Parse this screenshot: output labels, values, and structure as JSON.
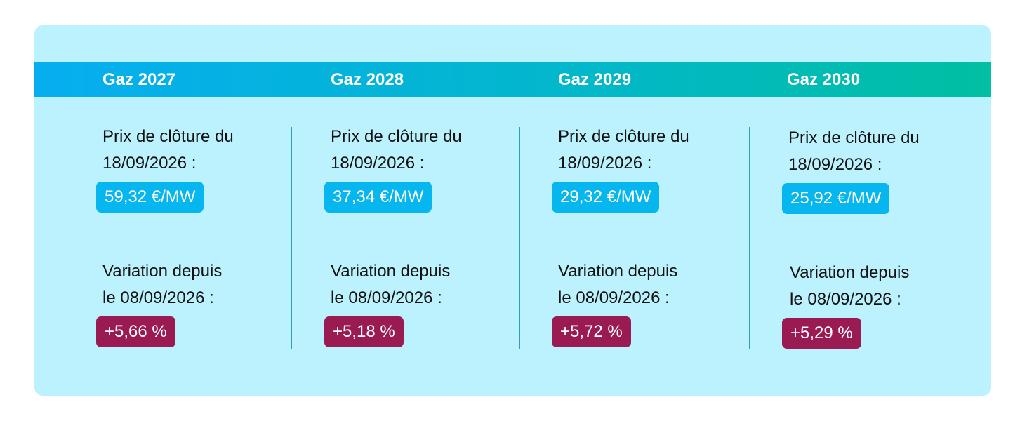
{
  "columns": [
    {
      "title": "Gaz 2027",
      "close_label": "Prix de clôture du\n18/09/2026 :",
      "price": "59,32 €/MW",
      "variation_label": "Variation depuis\nle 08/09/2026 :",
      "variation": "+5,66 %"
    },
    {
      "title": "Gaz 2028",
      "close_label": "Prix de clôture du\n18/09/2026 :",
      "price": "37,34 €/MW",
      "variation_label": "Variation depuis\nle 08/09/2026 :",
      "variation": "+5,18 %"
    },
    {
      "title": "Gaz 2029",
      "close_label": "Prix de clôture du\n18/09/2026 :",
      "price": "29,32 €/MW",
      "variation_label": "Variation depuis\nle 08/09/2026 :",
      "variation": "+5,72 %"
    },
    {
      "title": "Gaz 2030",
      "close_label": "Prix de clôture du\n18/09/2026 :",
      "price": "25,92 €/MW",
      "variation_label": "Variation depuis\nle 08/09/2026 :",
      "variation": "+5,29 %"
    }
  ],
  "colors": {
    "card_background": "#bcf2fe",
    "banner_start": "#06aef0",
    "banner_end": "#00bfa2",
    "price_pill": "#06b6ef",
    "variation_pill": "#9a1a52",
    "divider": "#2aa0b6"
  }
}
